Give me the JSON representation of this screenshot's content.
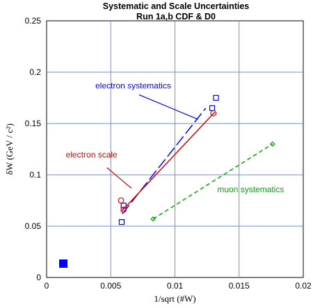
{
  "chart_data": {
    "type": "scatter",
    "title": "Systematic and Scale Uncertainties",
    "subtitle": "Run 1a,b CDF & D0",
    "xlabel": "1/sqrt (#W)",
    "ylabel": "δW (GeV / c²)",
    "xlim": [
      0,
      0.02
    ],
    "ylim": [
      0,
      0.25
    ],
    "x_ticks": [
      0,
      0.005,
      0.01,
      0.015,
      0.02
    ],
    "x_tick_labels": [
      "0",
      "0.005",
      "0.01",
      "0.015",
      "0.02"
    ],
    "y_ticks": [
      0,
      0.05,
      0.1,
      0.15,
      0.2,
      0.25
    ],
    "y_tick_labels": [
      "0",
      "0.05",
      "0.1",
      "0.15",
      "0.2",
      "0.25"
    ],
    "grid": true,
    "series": [
      {
        "name": "electron systematics",
        "color": "#0000ff",
        "marker": "square",
        "points": [
          [
            0.00585,
            0.054
          ],
          [
            0.006,
            0.07
          ],
          [
            0.0129,
            0.165
          ],
          [
            0.0132,
            0.175
          ]
        ],
        "fit": [
          [
            0.0059,
            0.062
          ],
          [
            0.0124,
            0.165
          ]
        ],
        "fit_style": "long-dash"
      },
      {
        "name": "electron scale",
        "color": "#dd0000",
        "marker": "circle",
        "points": [
          [
            0.0058,
            0.075
          ],
          [
            0.006,
            0.066
          ],
          [
            0.013,
            0.16
          ]
        ],
        "fit": [
          [
            0.0058,
            0.064
          ],
          [
            0.0131,
            0.161
          ]
        ],
        "fit_style": "solid"
      },
      {
        "name": "muon systematics",
        "color": "#00aa00",
        "marker": "diamond",
        "points": [
          [
            0.0083,
            0.057
          ],
          [
            0.0176,
            0.13
          ]
        ],
        "fit": [
          [
            0.0083,
            0.057
          ],
          [
            0.0176,
            0.13
          ]
        ],
        "fit_style": "dashed"
      }
    ],
    "annotations": [
      {
        "text": "electron systematics",
        "color": "#0000ff",
        "label_at": [
          0.0038,
          0.184
        ],
        "arrow_from": [
          0.0072,
          0.178
        ],
        "arrow_to": [
          0.0118,
          0.154
        ]
      },
      {
        "text": "electron scale",
        "color": "#dd0000",
        "label_at": [
          0.0015,
          0.117
        ],
        "arrow_from": [
          0.0047,
          0.107
        ],
        "arrow_to": [
          0.0066,
          0.087
        ]
      },
      {
        "text": "muon systematics",
        "color": "#00aa00",
        "label_at": [
          0.0133,
          0.083
        ],
        "arrow_from": null,
        "arrow_to": null
      }
    ],
    "legend_marker": {
      "color": "#0000ff",
      "x": 0.0013,
      "y": 0.0135
    }
  }
}
